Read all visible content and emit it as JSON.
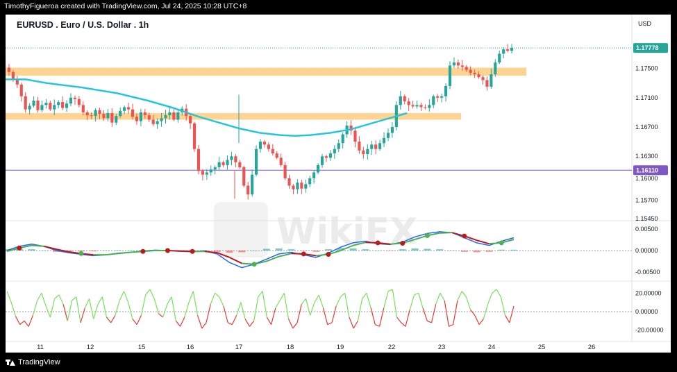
{
  "attribution": "TimothyFigueroa created with TradingView.com, Jul 24, 2025 10:28 UTC+8",
  "footer": {
    "brand": "TradingView",
    "logo_icon": "tradingview-logo-icon"
  },
  "watermark": {
    "text": "WikiFX",
    "logo_icon": "wikifx-lion-logo-icon"
  },
  "colors": {
    "background": "#ffffff",
    "candle_up": "#26a69a",
    "candle_down": "#ef5350",
    "zone": "#ffcc80",
    "ma": "#26c6da",
    "level": "#7e57c2",
    "price_label": "#26a69a",
    "macd_line": "#2962ff",
    "signal_up": "#4caf50",
    "signal_down": "#b71c1c",
    "osc_up": "#76e05a",
    "osc_down": "#e53935"
  },
  "chart_data": {
    "type": "candlestick",
    "title": "EURUSD . Euro / U.S. Dollar . 1h",
    "currency": "USD",
    "x_tick_labels": [
      "11",
      "12",
      "15",
      "16",
      "17",
      "18",
      "19",
      "22",
      "23",
      "24",
      "25",
      "26"
    ],
    "price_axis": {
      "tick_labels": [
        "1.17500",
        "1.17100",
        "1.16700",
        "1.16300",
        "1.16000",
        "1.15700",
        "1.15450"
      ],
      "ylim": [
        1.1545,
        1.1795
      ]
    },
    "last_price": "1.17778",
    "horizontal_level": "1.16110",
    "supply_demand_zones": [
      {
        "low": 1.174,
        "high": 1.1751
      },
      {
        "low": 1.168,
        "high": 1.1689
      }
    ],
    "price_path": [
      1.1745,
      1.1735,
      1.1728,
      1.1712,
      1.1694,
      1.1699,
      1.1706,
      1.1693,
      1.17,
      1.1703,
      1.1694,
      1.17,
      1.1704,
      1.1696,
      1.1702,
      1.171,
      1.1708,
      1.17,
      1.169,
      1.1686,
      1.1685,
      1.1693,
      1.1688,
      1.1682,
      1.1689,
      1.1676,
      1.1685,
      1.1692,
      1.1697,
      1.1694,
      1.1684,
      1.1678,
      1.169,
      1.1686,
      1.168,
      1.1674,
      1.1678,
      1.1682,
      1.1686,
      1.169,
      1.168,
      1.169,
      1.1695,
      1.1685,
      1.1675,
      1.164,
      1.161,
      1.1605,
      1.1608,
      1.1612,
      1.1615,
      1.1622,
      1.1618,
      1.1625,
      1.163,
      1.1622,
      1.1615,
      1.159,
      1.1578,
      1.1605,
      1.164,
      1.165,
      1.1646,
      1.164,
      1.1634,
      1.1628,
      1.1618,
      1.16,
      1.159,
      1.1585,
      1.1594,
      1.1586,
      1.1592,
      1.16,
      1.1608,
      1.1618,
      1.163,
      1.1628,
      1.1634,
      1.164,
      1.1648,
      1.166,
      1.1672,
      1.1665,
      1.165,
      1.1638,
      1.1633,
      1.164,
      1.1646,
      1.164,
      1.1648,
      1.1655,
      1.1662,
      1.167,
      1.17,
      1.1712,
      1.1705,
      1.17,
      1.1698,
      1.17,
      1.1697,
      1.1696,
      1.17,
      1.1712,
      1.171,
      1.1712,
      1.1726,
      1.1754,
      1.1758,
      1.1754,
      1.1752,
      1.1748,
      1.1744,
      1.1742,
      1.1738,
      1.1734,
      1.1725,
      1.1742,
      1.1758,
      1.177,
      1.1776,
      1.1774,
      1.1778
    ],
    "moving_average": [
      [
        0,
        1.1735
      ],
      [
        0.04,
        1.1735
      ],
      [
        0.08,
        1.173
      ],
      [
        0.15,
        1.1724
      ],
      [
        0.22,
        1.1716
      ],
      [
        0.28,
        1.1706
      ],
      [
        0.33,
        1.1696
      ],
      [
        0.38,
        1.1684
      ],
      [
        0.42,
        1.1676
      ],
      [
        0.46,
        1.1668
      ],
      [
        0.5,
        1.1662
      ],
      [
        0.54,
        1.1659
      ],
      [
        0.57,
        1.1658
      ],
      [
        0.6,
        1.1659
      ],
      [
        0.64,
        1.1662
      ],
      [
        0.68,
        1.1667
      ],
      [
        0.72,
        1.1675
      ],
      [
        0.76,
        1.1683
      ],
      [
        0.79,
        1.1689
      ]
    ],
    "macd": {
      "tick_labels": [
        "0.00500",
        "0.00000",
        "-0.00500"
      ],
      "ylim": [
        -0.0065,
        0.0065
      ],
      "macd_line": [
        0.0,
        0.001,
        0.0015,
        0.001,
        0.0,
        -0.0005,
        -0.0009,
        -0.0012,
        -0.001,
        -0.0006,
        -0.0004,
        -0.0001,
        0.0001,
        0.0,
        -0.0002,
        -0.0003,
        -0.0001,
        -0.0008,
        -0.0028,
        -0.004,
        -0.0032,
        -0.002,
        -0.0008,
        -0.0004,
        -0.001,
        -0.0016,
        -0.0006,
        0.0008,
        0.0018,
        0.0022,
        0.0016,
        0.0014,
        0.002,
        0.0032,
        0.004,
        0.0044,
        0.0042,
        0.003,
        0.0018,
        0.0012,
        0.0022,
        0.003
      ],
      "signal_line": [
        -0.0002,
        0.0006,
        0.0012,
        0.001,
        0.0003,
        -0.0003,
        -0.0007,
        -0.001,
        -0.001,
        -0.0007,
        -0.0004,
        -0.0002,
        0.0,
        0.0,
        -0.0001,
        -0.0002,
        -0.0002,
        -0.0005,
        -0.0016,
        -0.003,
        -0.0032,
        -0.0025,
        -0.0014,
        -0.0007,
        -0.0008,
        -0.0012,
        -0.0009,
        0.0,
        0.0012,
        0.0019,
        0.0018,
        0.0015,
        0.0017,
        0.0026,
        0.0035,
        0.0041,
        0.0042,
        0.0034,
        0.0024,
        0.0016,
        0.0018,
        0.0026
      ],
      "histogram": [
        0.0003,
        0.0004,
        0.0003,
        0.0,
        -0.0003,
        -0.0002,
        -0.0002,
        -0.0002,
        0.0,
        0.0001,
        0.0,
        0.0001,
        0.0001,
        0.0,
        -0.0001,
        -0.0001,
        0.0001,
        -0.0003,
        -0.0005,
        -0.0004,
        0.0,
        0.0004,
        0.0005,
        0.0003,
        -0.0001,
        -0.0003,
        0.0003,
        0.0006,
        0.0005,
        0.0003,
        0.0,
        -0.0001,
        0.0003,
        0.0005,
        0.0004,
        0.0003,
        0.0,
        -0.0003,
        -0.0004,
        -0.0003,
        0.0002,
        0.0002
      ],
      "cross_points": [
        {
          "i": 1,
          "dir": "down"
        },
        {
          "i": 6,
          "dir": "up"
        },
        {
          "i": 11,
          "dir": "down"
        },
        {
          "i": 13,
          "dir": "down"
        },
        {
          "i": 15,
          "dir": "down"
        },
        {
          "i": 20,
          "dir": "up"
        },
        {
          "i": 24,
          "dir": "down"
        },
        {
          "i": 26,
          "dir": "down"
        },
        {
          "i": 30,
          "dir": "down"
        },
        {
          "i": 32,
          "dir": "down"
        },
        {
          "i": 34,
          "dir": "up"
        },
        {
          "i": 37,
          "dir": "down"
        },
        {
          "i": 40,
          "dir": "up"
        }
      ]
    },
    "oscillator": {
      "tick_labels": [
        "20.00000",
        "0.00000",
        "-20.00000"
      ],
      "ylim": [
        -30,
        30
      ],
      "values": [
        22,
        10,
        -5,
        -14,
        -10,
        -16,
        -4,
        12,
        20,
        6,
        -6,
        14,
        18,
        8,
        -10,
        12,
        16,
        -12,
        4,
        14,
        -8,
        8,
        16,
        -6,
        -12,
        -4,
        12,
        22,
        10,
        -8,
        -14,
        -4,
        18,
        24,
        14,
        -2,
        -6,
        8,
        16,
        -10,
        -16,
        -6,
        10,
        22,
        -4,
        -18,
        -12,
        8,
        20,
        16,
        6,
        -12,
        -14,
        -4,
        10,
        -8,
        -16,
        -10,
        16,
        22,
        -6,
        -14,
        4,
        12,
        20,
        -8,
        -18,
        -12,
        8,
        14,
        -4,
        10,
        18,
        4,
        -14,
        -12,
        6,
        16,
        20,
        -6,
        -18,
        -10,
        14,
        20,
        4,
        -14,
        -16,
        4,
        22,
        24,
        -6,
        -12,
        -16,
        2,
        18,
        20,
        4,
        -10,
        -12,
        8,
        20,
        12,
        -16,
        -14,
        12,
        22,
        16,
        2,
        -4,
        -14,
        -8,
        8,
        20,
        24,
        16,
        -4,
        -12,
        6
      ]
    }
  }
}
